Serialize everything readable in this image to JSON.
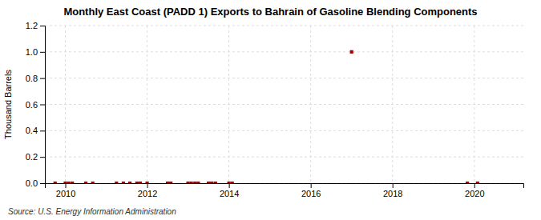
{
  "chart_data": {
    "type": "scatter",
    "title": "Monthly East Coast (PADD 1) Exports to Bahrain of Gasoline Blending Components",
    "ylabel": "Thousand Barrels",
    "source": "Source: U.S. Energy Information Administration",
    "color": "#aa0000",
    "marker": "square",
    "grid": true,
    "xlim": [
      2009.5,
      2021.2
    ],
    "ylim": [
      0.0,
      1.2
    ],
    "xticks": [
      2010,
      2012,
      2014,
      2016,
      2018,
      2020
    ],
    "yticks": [
      {
        "value": 0.0,
        "label": "0.0"
      },
      0.2,
      0.4,
      0.6,
      0.8,
      {
        "value": 1.0,
        "label": "1.0"
      },
      1.2
    ],
    "x": [
      2009.75,
      2010.0,
      2010.08,
      2010.17,
      2010.5,
      2010.67,
      2011.25,
      2011.42,
      2011.58,
      2011.75,
      2011.83,
      2012.0,
      2012.5,
      2012.58,
      2013.0,
      2013.08,
      2013.17,
      2013.25,
      2013.5,
      2013.58,
      2013.67,
      2014.0,
      2014.08,
      2017.0,
      2019.83,
      2020.08
    ],
    "values": [
      0.0,
      0.0,
      0.0,
      0.0,
      0.0,
      0.0,
      0.0,
      0.0,
      0.0,
      0.0,
      0.0,
      0.0,
      0.0,
      0.0,
      0.0,
      0.0,
      0.0,
      0.0,
      0.0,
      0.0,
      0.0,
      0.0,
      0.0,
      1.0,
      0.0,
      0.0
    ]
  }
}
